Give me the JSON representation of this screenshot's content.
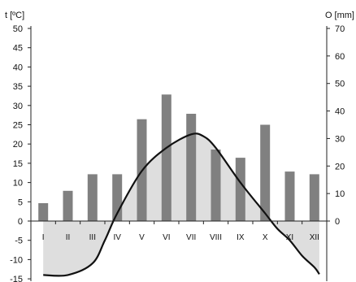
{
  "chart_data": {
    "type": "bar",
    "left_axis_label": "t [ºC]",
    "right_axis_label": "O [mm]",
    "categories": [
      "I",
      "II",
      "III",
      "IV",
      "V",
      "VI",
      "VII",
      "VIII",
      "IX",
      "X",
      "XI",
      "XII"
    ],
    "left_ticks": [
      50,
      45,
      40,
      35,
      30,
      25,
      20,
      15,
      10,
      5,
      0,
      -5,
      -10,
      -15
    ],
    "right_ticks": [
      70,
      60,
      50,
      40,
      30,
      20,
      10,
      0
    ],
    "ylim_left": [
      -15,
      50
    ],
    "ylim_right": [
      -21,
      70
    ],
    "series": [
      {
        "kind": "bar",
        "axis": "right",
        "values": [
          6.5,
          11,
          17,
          17,
          37,
          46,
          39,
          26,
          23,
          35,
          18,
          17
        ]
      },
      {
        "kind": "line",
        "axis": "left",
        "points": [
          [
            0.0,
            -14.0
          ],
          [
            1.0,
            -14.0
          ],
          [
            2.0,
            -11.0
          ],
          [
            2.5,
            -5.0
          ],
          [
            3.0,
            2.0
          ],
          [
            4.0,
            13.0
          ],
          [
            5.0,
            19.0
          ],
          [
            6.0,
            22.5
          ],
          [
            6.5,
            22.0
          ],
          [
            7.0,
            19.0
          ],
          [
            8.0,
            10.0
          ],
          [
            9.0,
            2.0
          ],
          [
            9.5,
            -2.0
          ],
          [
            10.0,
            -5.0
          ],
          [
            10.5,
            -9.0
          ],
          [
            11.0,
            -12.0
          ],
          [
            11.2,
            -13.8
          ]
        ],
        "color": "#111111"
      }
    ],
    "colors": {
      "bar": "#808080",
      "fill": "#dedede",
      "line": "#111111"
    },
    "grid": false
  }
}
